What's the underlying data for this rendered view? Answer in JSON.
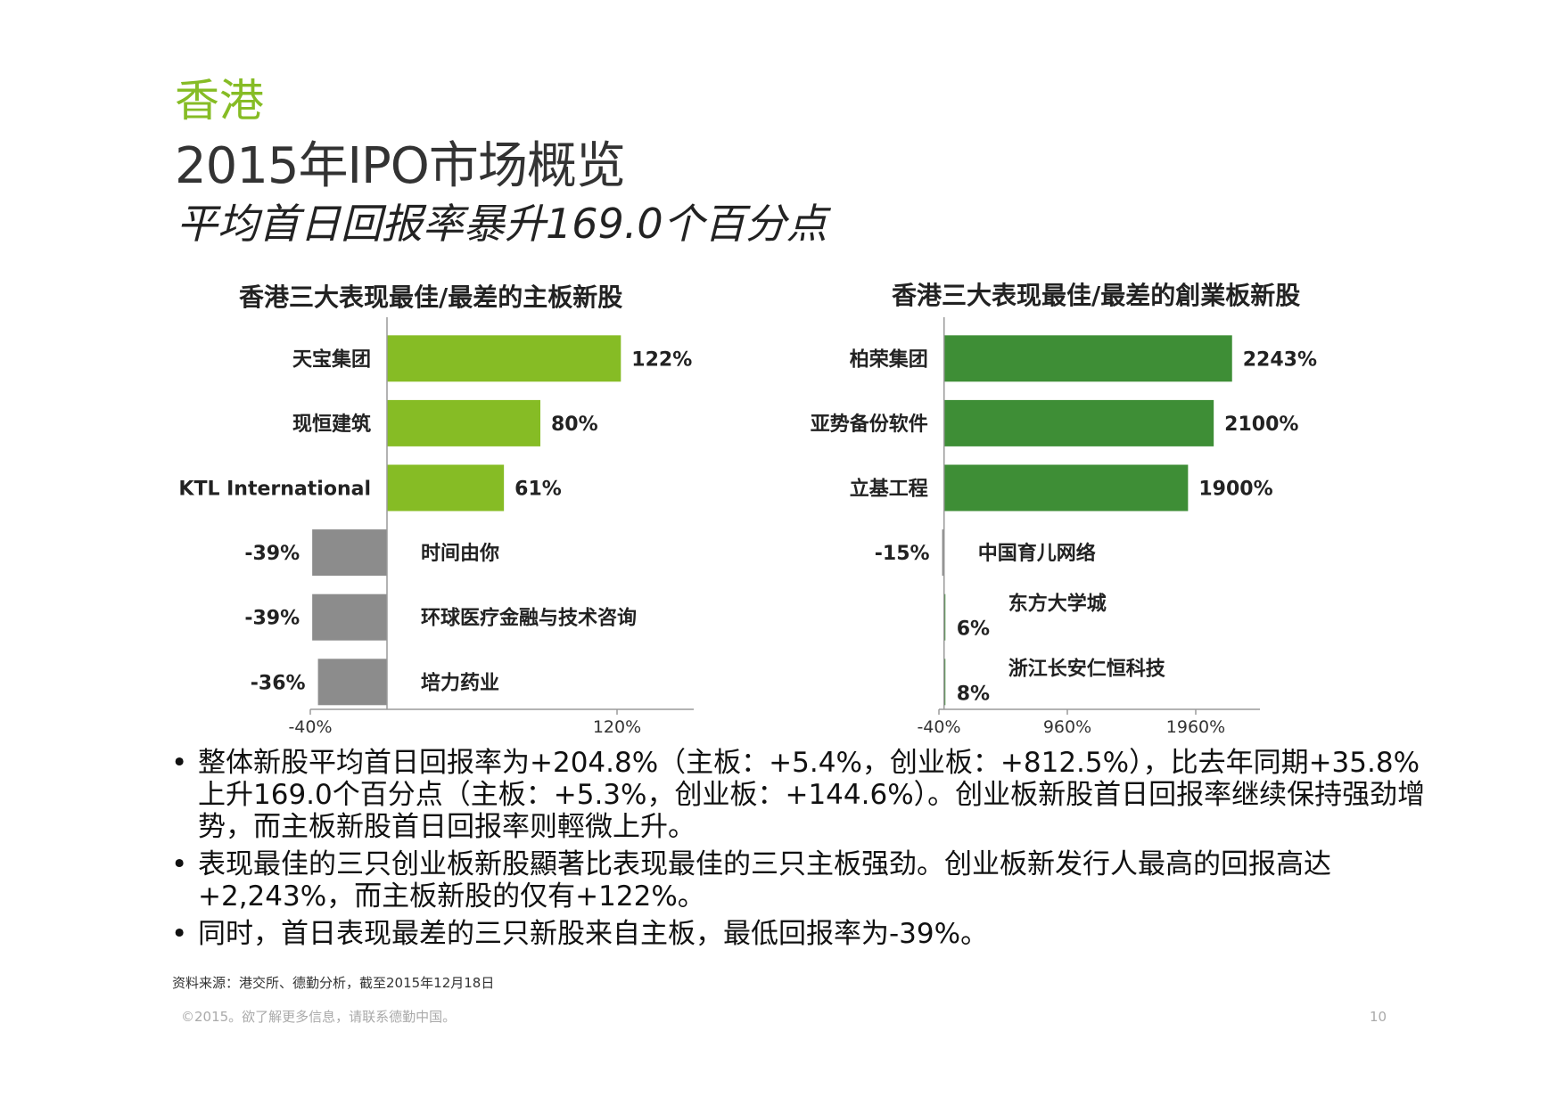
{
  "header": {
    "region": "香港",
    "title": "2015年IPO市场概览",
    "subtitle": "平均首日回报率暴升169.0个百分点"
  },
  "colors": {
    "main_positive": "#86bc25",
    "gem_positive": "#3e8e36",
    "negative": "#8c8c8c"
  },
  "chart_data": [
    {
      "type": "bar",
      "orientation": "horizontal",
      "title": "香港三大表现最佳/最差的主板新股",
      "categories": [
        "天宝集团",
        "现恒建筑",
        "KTL International",
        "时间由你",
        "环球医疗金融与技术咨询",
        "培力药业"
      ],
      "values": [
        122,
        80,
        61,
        -39,
        -39,
        -36
      ],
      "value_labels": [
        "122%",
        "80%",
        "61%",
        "-39%",
        "-39%",
        "-36%"
      ],
      "xlim": [
        -40,
        160
      ],
      "xticks": [
        -40,
        120
      ],
      "xtick_labels": [
        "-40%",
        "120%"
      ],
      "grid": false
    },
    {
      "type": "bar",
      "orientation": "horizontal",
      "title": "香港三大表现最佳/最差的創業板新股",
      "categories": [
        "柏荣集团",
        "亚势备份软件",
        "立基工程",
        "中国育儿网络",
        "东方大学城",
        "浙江长安仁恒科技"
      ],
      "values": [
        2243,
        2100,
        1900,
        -15,
        6,
        8
      ],
      "value_labels": [
        "2243%",
        "2100%",
        "1900%",
        "-15%",
        "6%",
        "8%"
      ],
      "xlim": [
        -40,
        2460
      ],
      "xticks": [
        -40,
        960,
        1960
      ],
      "xtick_labels": [
        "-40%",
        "960%",
        "1960%"
      ],
      "grid": false
    }
  ],
  "bullets": [
    "整体新股平均首日回报率为+204.8%（主板：+5.4%，创业板：+812.5%），比去年同期+35.8%上升169.0个百分点（主板：+5.3%，创业板：+144.6%）。创业板新股首日回报率继续保持强劲增势，而主板新股首日回报率则輕微上升。",
    "表现最佳的三只创业板新股顯著比表现最佳的三只主板强劲。创业板新发行人最高的回报高达+2,243%，而主板新股的仅有+122%。",
    "同时，首日表现最差的三只新股来自主板，最低回报率为-39%。"
  ],
  "footer": {
    "source": "资料来源：港交所、德勤分析，截至2015年12月18日",
    "copyright": "©2015。欲了解更多信息，请联系德勤中国。",
    "page_number": "10"
  }
}
